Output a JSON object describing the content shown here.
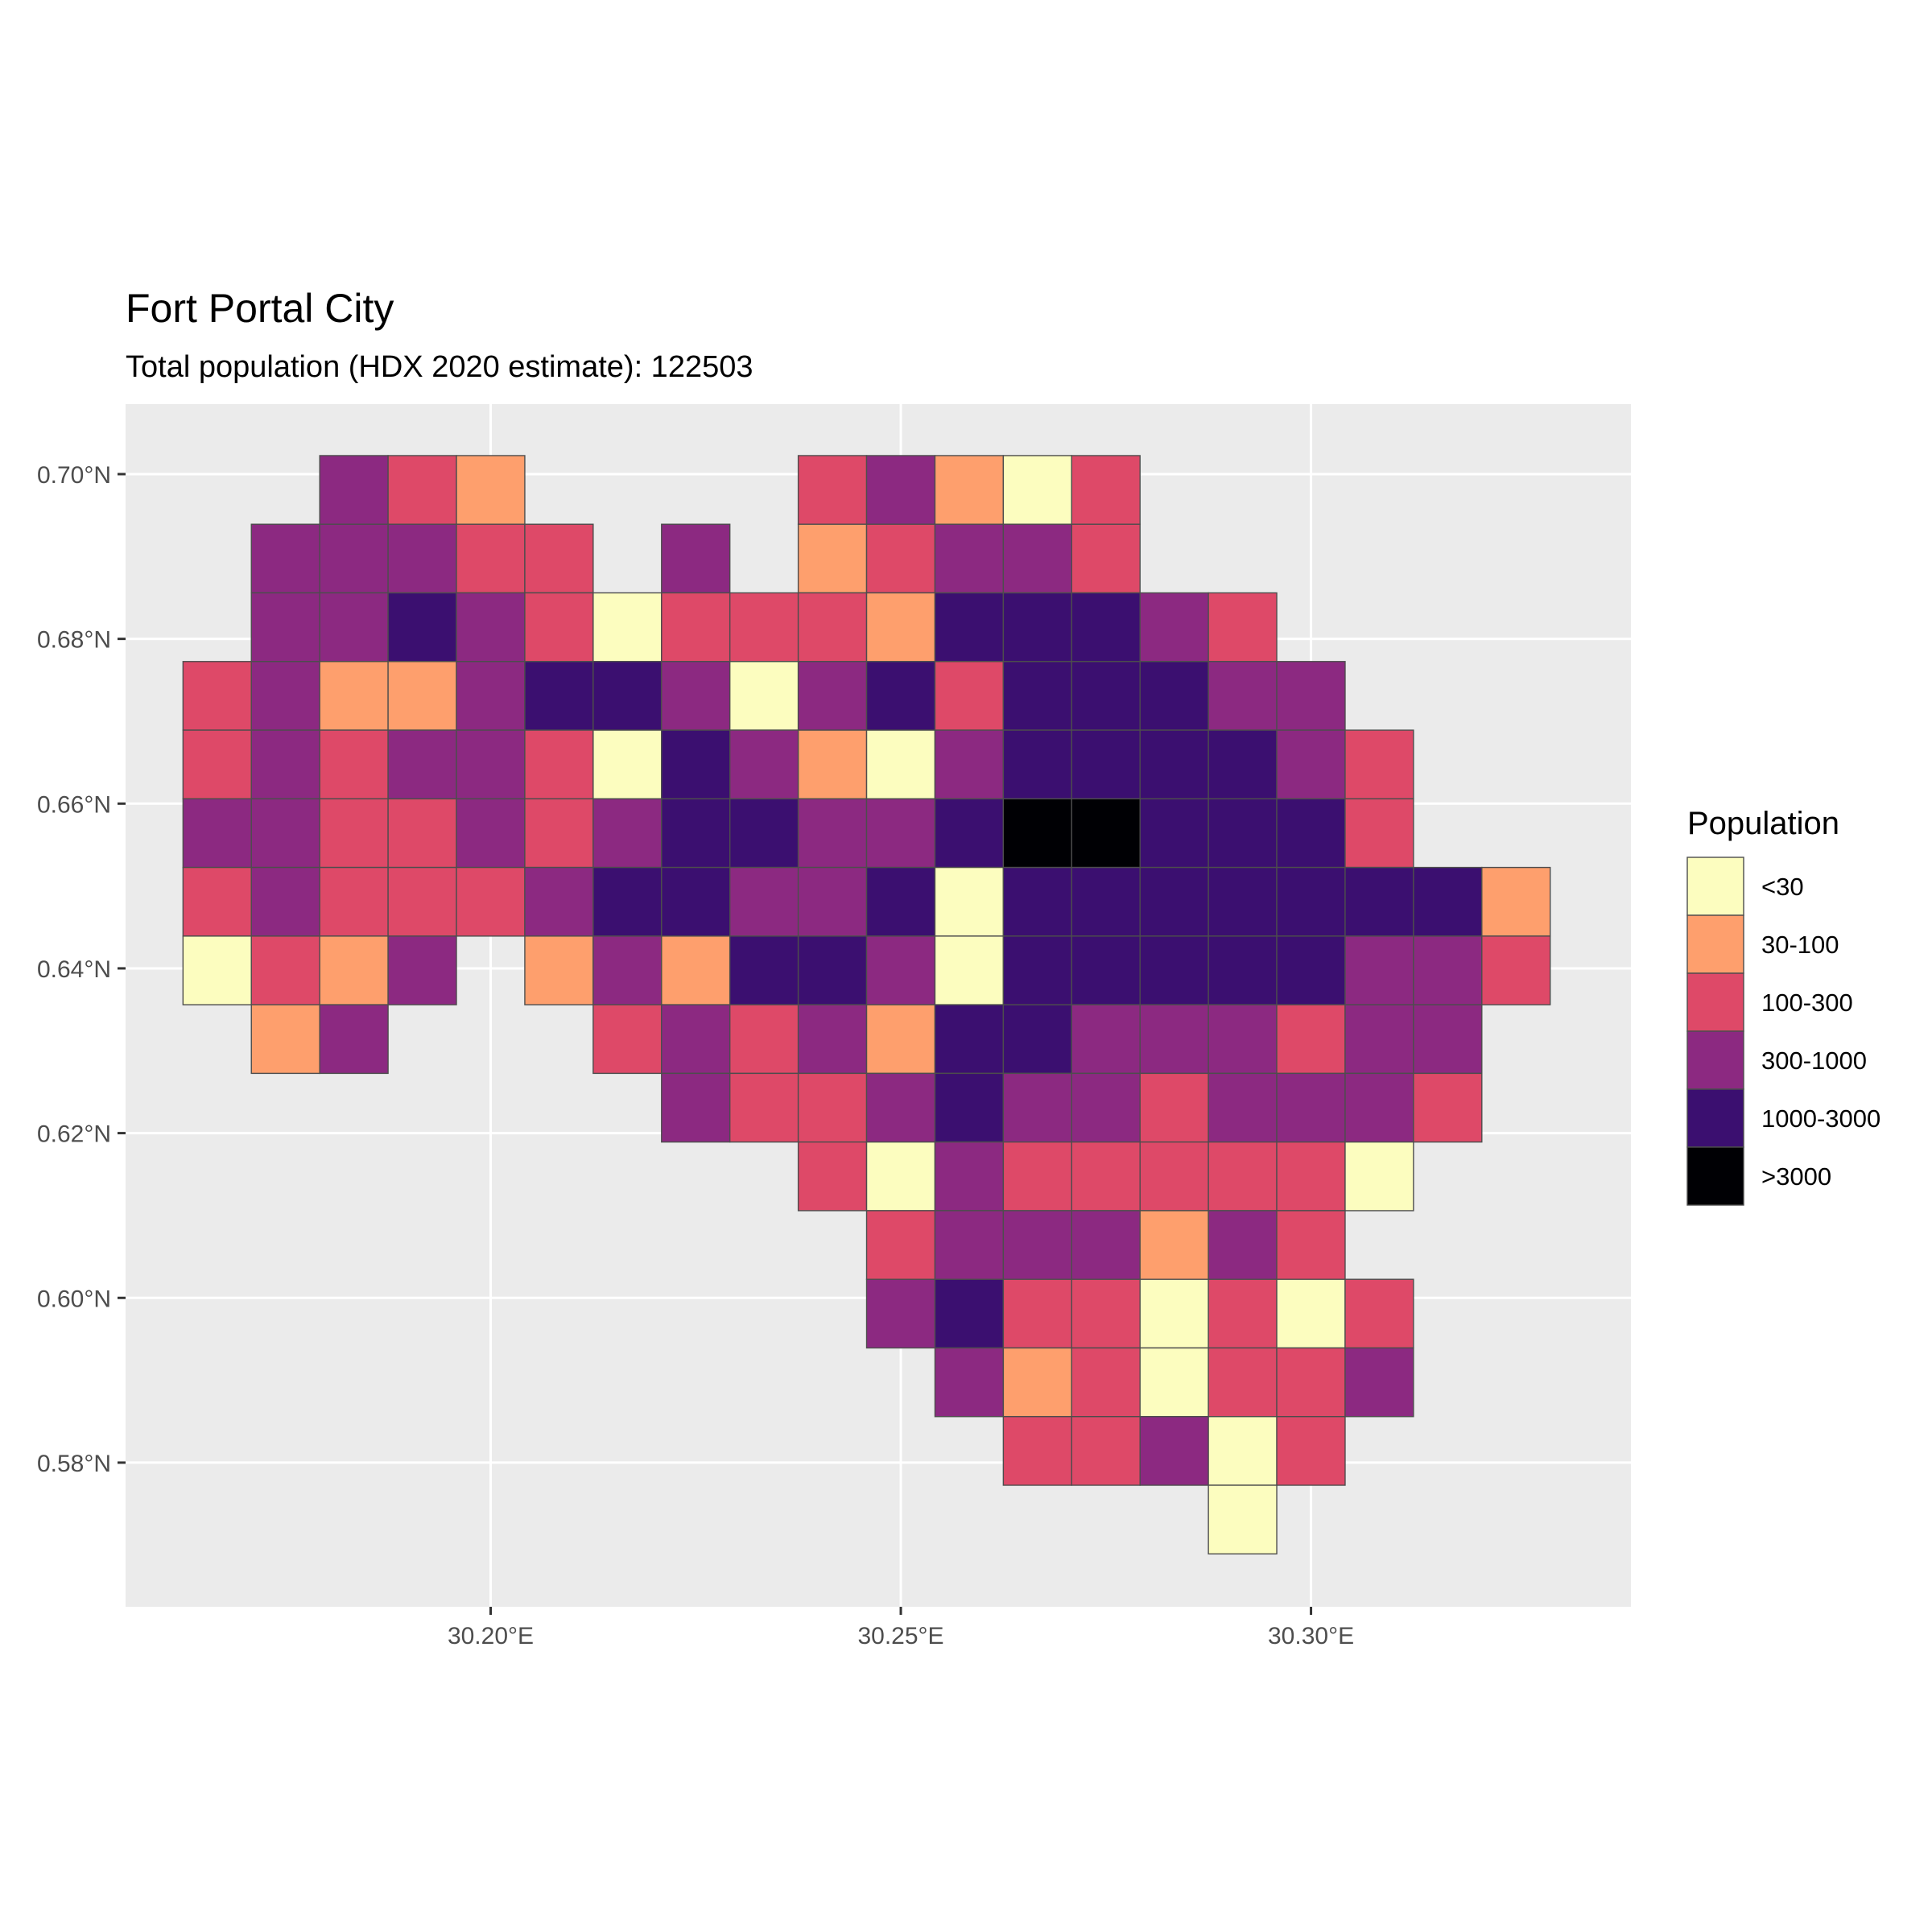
{
  "chart_data": {
    "type": "heatmap",
    "title": "Fort Portal City",
    "subtitle": "Total population (HDX 2020 estimate): 122503",
    "x_axis": {
      "ticks": [
        30.2,
        30.25,
        30.3
      ],
      "tick_labels": [
        "30.20°E",
        "30.25°E",
        "30.30°E"
      ],
      "range": [
        30.1555,
        30.339
      ]
    },
    "y_axis": {
      "ticks": [
        0.58,
        0.6,
        0.62,
        0.64,
        0.66,
        0.68,
        0.7
      ],
      "tick_labels": [
        "0.58°N",
        "0.60°N",
        "0.62°N",
        "0.64°N",
        "0.66°N",
        "0.68°N",
        "0.70°N"
      ],
      "range": [
        0.5625,
        0.7085
      ]
    },
    "grid": true,
    "cell_size_deg": 0.008333,
    "origin": {
      "x_west": 30.1625,
      "y_north": 0.70225
    },
    "legend": {
      "title": "Population",
      "position": "right",
      "classes": [
        {
          "label": "<30",
          "color": "#fcfdbf"
        },
        {
          "label": "30-100",
          "color": "#fe9f6d"
        },
        {
          "label": "100-300",
          "color": "#de4968"
        },
        {
          "label": "300-1000",
          "color": "#8c2981"
        },
        {
          "label": "1000-3000",
          "color": "#3b0f70"
        },
        {
          "label": ">3000",
          "color": "#000004"
        }
      ]
    },
    "grid_rows": [
      ".. .. 3  2  1  .. .. .. .. 2  3  1  0  2  .. .. .. .. ..",
      ".. 3  3  3  2  2  .. 3  .. 1  2  3  3  2  .. .. .. .. ..",
      ".. 3  3  4  3  2  0  2  2  2  1  4  4  4  3  2  .. .. ..",
      "2  3  1  1  3  4  4  3  0  3  4  2  4  4  4  3  3  .. ..",
      "2  3  2  3  3  2  0  4  3  1  0  3  4  4  4  4  3  2  ..",
      "3  3  2  2  3  2  3  4  4  3  3  4  5  5  4  4  4  2  ..",
      "2  3  2  2  2  3  4  4  3  3  4  0  4  4  4  4  4  4  4  1",
      "0  2  1  3  .. 1  3  1  4  4  3  0  4  4  4  4  4  3  3  2",
      ".. 1  3  .. .. .. 2  3  2  3  1  4  4  3  3  3  2  3  3  ..",
      ".. .. .. .. .. .. .. 3  2  2  3  4  3  3  2  3  3  3  2  ..",
      ".. .. .. .. .. .. .. .. .. 2  0  3  2  2  2  2  2  0  .. ..",
      ".. .. .. .. .. .. .. .. .. .. 2  3  3  3  1  3  2  .. .. ..",
      ".. .. .. .. .. .. .. .. .. .. 3  4  2  2  0  2  0  2  .. ..",
      ".. .. .. .. .. .. .. .. .. .. .. 3  1  2  0  2  2  3  .. ..",
      ".. .. .. .. .. .. .. .. .. .. .. .. 2  2  3  0  2  .. .. ..",
      ".. .. .. .. .. .. .. .. .. .. .. .. .. .. .. 0  .. .. .. .."
    ]
  }
}
